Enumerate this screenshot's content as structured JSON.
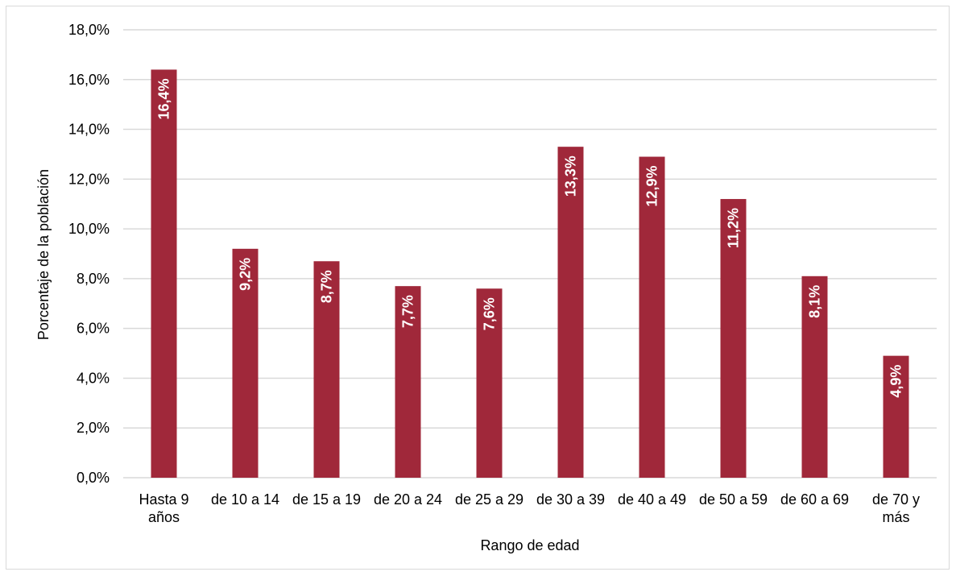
{
  "chart_data": {
    "type": "bar",
    "categories": [
      "Hasta 9 años",
      "de 10 a 14",
      "de 15 a 19",
      "de 20 a 24",
      "de 25 a 29",
      "de 30 a 39",
      "de 40 a 49",
      "de 50 a 59",
      "de 60 a 69",
      "de 70 y más"
    ],
    "category_lines": [
      [
        "Hasta 9",
        "años"
      ],
      [
        "de 10 a 14"
      ],
      [
        "de 15 a 19"
      ],
      [
        "de 20 a 24"
      ],
      [
        "de 25 a 29"
      ],
      [
        "de 30 a 39"
      ],
      [
        "de 40 a 49"
      ],
      [
        "de 50 a 59"
      ],
      [
        "de 60 a 69"
      ],
      [
        "de 70 y",
        "más"
      ]
    ],
    "values": [
      16.4,
      9.2,
      8.7,
      7.7,
      7.6,
      13.3,
      12.9,
      11.2,
      8.1,
      4.9
    ],
    "data_labels": [
      "16,4%",
      "9,2%",
      "8,7%",
      "7,7%",
      "7,6%",
      "13,3%",
      "12,9%",
      "11,2%",
      "8,1%",
      "4,9%"
    ],
    "xlabel": "Rango de edad",
    "ylabel": "Porcentaje de la población",
    "ylim": [
      0,
      18
    ],
    "yticks": [
      0,
      2,
      4,
      6,
      8,
      10,
      12,
      14,
      16,
      18
    ],
    "ytick_labels": [
      "0,0%",
      "2,0%",
      "4,0%",
      "6,0%",
      "8,0%",
      "10,0%",
      "12,0%",
      "14,0%",
      "16,0%",
      "18,0%"
    ],
    "grid": true,
    "legend": "none",
    "colors": {
      "bar": "#a0283a",
      "grid": "#d9d9d9",
      "label": "#ffffff"
    }
  }
}
